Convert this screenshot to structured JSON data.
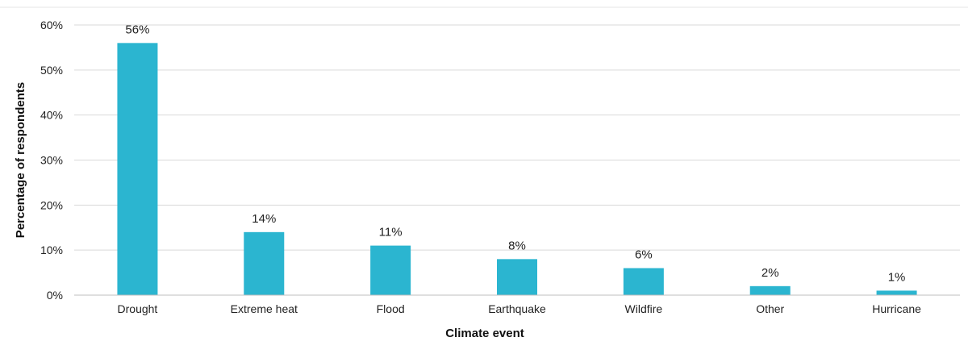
{
  "chart_data": {
    "type": "bar",
    "title": "",
    "xlabel": "Climate event",
    "ylabel": "Percentage of respondents",
    "categories": [
      "Drought",
      "Extreme heat",
      "Flood",
      "Earthquake",
      "Wildfire",
      "Other",
      "Hurricane"
    ],
    "values": [
      56,
      14,
      11,
      8,
      6,
      2,
      1
    ],
    "data_labels": [
      "56%",
      "14%",
      "11%",
      "8%",
      "6%",
      "2%",
      "1%"
    ],
    "ylim": [
      0,
      60
    ],
    "yticks": [
      0,
      10,
      20,
      30,
      40,
      50,
      60
    ],
    "ytick_labels": [
      "0%",
      "10%",
      "20%",
      "30%",
      "40%",
      "50%",
      "60%"
    ],
    "grid": true,
    "legend": "none",
    "colors": {
      "bar": "#2bb5d0",
      "grid": "#d9d9d9",
      "axis": "#bfbfbf"
    }
  }
}
